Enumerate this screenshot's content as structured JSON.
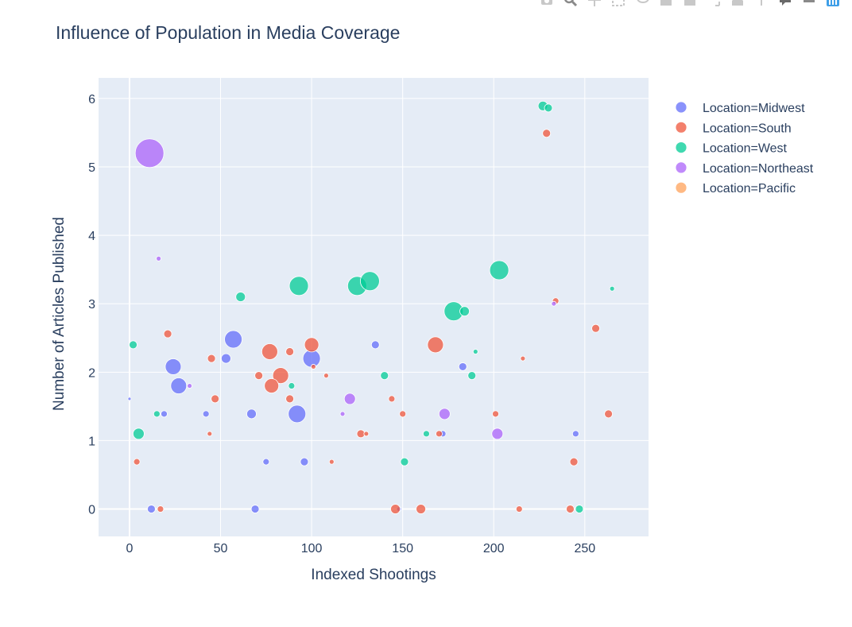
{
  "chart_data": {
    "type": "scatter",
    "title": "Influence of Population in Media Coverage",
    "xlabel": "Indexed Shootings",
    "ylabel": "Number of Articles Published",
    "xlim": [
      -17,
      285
    ],
    "ylim": [
      -0.4,
      6.3
    ],
    "xticks": [
      0,
      50,
      100,
      150,
      200,
      250
    ],
    "yticks": [
      0,
      1,
      2,
      3,
      4,
      5,
      6
    ],
    "grid": true,
    "legend_position": "top-right",
    "series": [
      {
        "name": "Location=Midwest",
        "color": "#636efa",
        "points": [
          [
            24,
            2.08,
            10
          ],
          [
            27,
            1.8,
            10
          ],
          [
            57,
            2.48,
            11
          ],
          [
            53,
            2.2,
            6
          ],
          [
            67,
            1.39,
            6
          ],
          [
            42,
            1.39,
            4
          ],
          [
            19,
            1.39,
            4
          ],
          [
            92,
            1.39,
            11
          ],
          [
            100,
            2.2,
            11
          ],
          [
            135,
            2.4,
            5
          ],
          [
            183,
            2.08,
            5
          ],
          [
            172,
            1.1,
            4
          ],
          [
            245,
            1.1,
            4
          ],
          [
            12,
            0,
            5
          ],
          [
            69,
            0,
            5
          ],
          [
            96,
            0.69,
            5
          ],
          [
            75,
            0.69,
            4
          ],
          [
            0,
            1.61,
            2
          ],
          [
            148,
            0,
            3
          ]
        ]
      },
      {
        "name": "Location=South",
        "color": "#ef553b",
        "points": [
          [
            229,
            5.49,
            5
          ],
          [
            234,
            3.04,
            4
          ],
          [
            21,
            2.56,
            5
          ],
          [
            45,
            2.2,
            5
          ],
          [
            77,
            2.3,
            10
          ],
          [
            100,
            2.4,
            9
          ],
          [
            83,
            1.95,
            10
          ],
          [
            78,
            1.8,
            9
          ],
          [
            71,
            1.95,
            5
          ],
          [
            88,
            2.3,
            5
          ],
          [
            168,
            2.4,
            10
          ],
          [
            256,
            2.64,
            5
          ],
          [
            263,
            1.39,
            5
          ],
          [
            47,
            1.61,
            5
          ],
          [
            127,
            1.1,
            5
          ],
          [
            170,
            1.1,
            4
          ],
          [
            201,
            1.39,
            4
          ],
          [
            216,
            2.2,
            3
          ],
          [
            144,
            1.61,
            4
          ],
          [
            108,
            1.95,
            3
          ],
          [
            101,
            2.08,
            3
          ],
          [
            88,
            1.61,
            5
          ],
          [
            4,
            0.69,
            4
          ],
          [
            111,
            0.69,
            3
          ],
          [
            244,
            0.69,
            5
          ],
          [
            146,
            0,
            6
          ],
          [
            160,
            0,
            6
          ],
          [
            242,
            0,
            5
          ],
          [
            17,
            0,
            4
          ],
          [
            214,
            0,
            4
          ],
          [
            130,
            1.1,
            3
          ],
          [
            150,
            1.39,
            4
          ],
          [
            44,
            1.1,
            3
          ]
        ]
      },
      {
        "name": "Location=West",
        "color": "#00cc96",
        "points": [
          [
            227,
            5.89,
            6
          ],
          [
            230,
            5.86,
            5
          ],
          [
            93,
            3.26,
            12
          ],
          [
            125,
            3.26,
            12
          ],
          [
            132,
            3.33,
            12
          ],
          [
            203,
            3.49,
            12
          ],
          [
            178,
            2.89,
            12
          ],
          [
            184,
            2.89,
            6
          ],
          [
            61,
            3.1,
            6
          ],
          [
            2,
            2.4,
            5
          ],
          [
            5,
            1.1,
            7
          ],
          [
            15,
            1.39,
            4
          ],
          [
            140,
            1.95,
            5
          ],
          [
            188,
            1.95,
            5
          ],
          [
            89,
            1.8,
            4
          ],
          [
            151,
            0.69,
            5
          ],
          [
            163,
            1.1,
            4
          ],
          [
            247,
            0,
            5
          ],
          [
            190,
            2.3,
            3
          ],
          [
            265,
            3.22,
            3
          ]
        ]
      },
      {
        "name": "Location=Northeast",
        "color": "#ab63fa",
        "points": [
          [
            11,
            5.2,
            18
          ],
          [
            16,
            3.66,
            3
          ],
          [
            121,
            1.61,
            7
          ],
          [
            173,
            1.39,
            7
          ],
          [
            202,
            1.1,
            7
          ],
          [
            233,
            3.0,
            3
          ],
          [
            33,
            1.8,
            3
          ],
          [
            117,
            1.39,
            3
          ]
        ]
      },
      {
        "name": "Location=Pacific",
        "color": "#ffa15a",
        "points": []
      }
    ]
  },
  "modebar": {
    "icons": [
      "camera-icon",
      "zoom-icon",
      "pan-icon",
      "select-box-icon",
      "lasso-icon",
      "zoom-in-icon",
      "zoom-out-icon",
      "autoscale-icon",
      "reset-axes-icon",
      "spike-lines-icon",
      "hover-closest-icon",
      "hover-compare-icon",
      "plotly-logo-icon"
    ]
  }
}
